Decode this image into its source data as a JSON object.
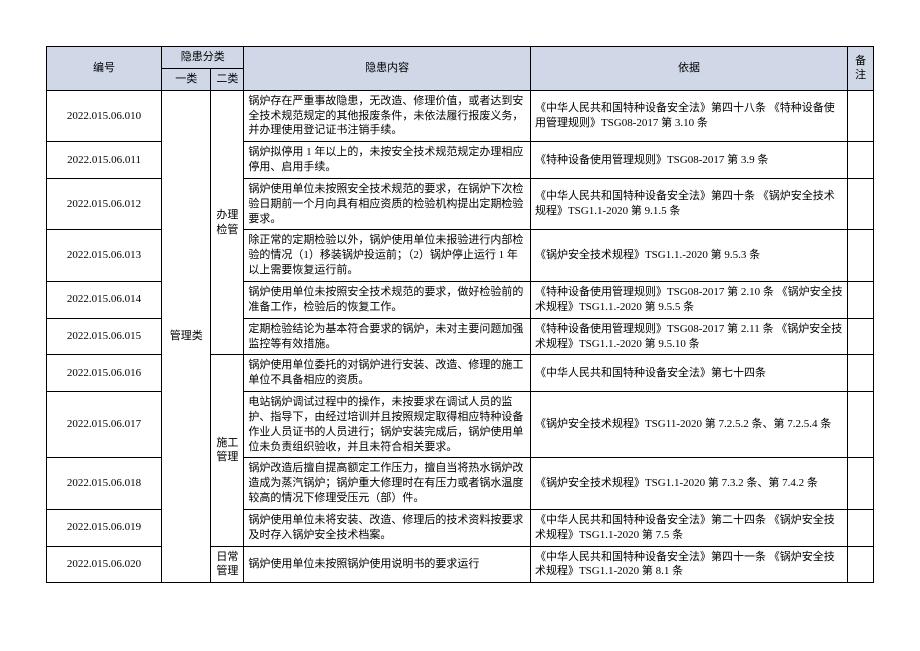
{
  "header": {
    "id": "编号",
    "category_group": "隐患分类",
    "cat1": "一类",
    "cat2": "二类",
    "content": "隐患内容",
    "basis": "依据",
    "note": "备注"
  },
  "cat1_label": "管理类",
  "cat2_labels": {
    "office": "办理检管",
    "construction": "施工管理",
    "daily": "日常管理"
  },
  "rows": [
    {
      "id": "2022.015.06.010",
      "content": "锅炉存在严重事故隐患，无改造、修理价值，或者达到安全技术规范规定的其他报废条件，未依法履行报废义务，并办理使用登记证书注销手续。",
      "basis": "《中华人民共和国特种设备安全法》第四十八条\n《特种设备使用管理规则》TSG08-2017 第 3.10 条"
    },
    {
      "id": "2022.015.06.011",
      "content": "锅炉拟停用 1 年以上的，未按安全技术规范规定办理相应停用、启用手续。",
      "basis": "《特种设备使用管理规则》TSG08-2017 第 3.9 条"
    },
    {
      "id": "2022.015.06.012",
      "content": "锅炉使用单位未按照安全技术规范的要求，在锅炉下次检验日期前一个月向具有相应资质的检验机构提出定期检验要求。",
      "basis": "《中华人民共和国特种设备安全法》第四十条\n《锅炉安全技术规程》TSG1.1-2020 第 9.1.5 条"
    },
    {
      "id": "2022.015.06.013",
      "content": "除正常的定期检验以外，锅炉使用单位未报验进行内部检验的情况（1）移装锅炉投运前；（2）锅炉停止运行 1 年以上需要恢复运行前。",
      "basis": "《锅炉安全技术规程》TSG1.1.-2020 第 9.5.3 条"
    },
    {
      "id": "2022.015.06.014",
      "content": "锅炉使用单位未按照安全技术规范的要求，做好检验前的准备工作，检验后的恢复工作。",
      "basis": "《特种设备使用管理规则》TSG08-2017 第 2.10 条\n《锅炉安全技术规程》TSG1.1.-2020 第 9.5.5 条"
    },
    {
      "id": "2022.015.06.015",
      "content": "定期检验结论为基本符合要求的锅炉，未对主要问题加强监控等有效措施。",
      "basis": "《特种设备使用管理规则》TSG08-2017 第 2.11 条\n《锅炉安全技术规程》TSG1.1.-2020 第 9.5.10 条"
    },
    {
      "id": "2022.015.06.016",
      "content": "锅炉使用单位委托的对锅炉进行安装、改造、修理的施工单位不具备相应的资质。",
      "basis": "《中华人民共和国特种设备安全法》第七十四条"
    },
    {
      "id": "2022.015.06.017",
      "content": "电站锅炉调试过程中的操作，未按要求在调试人员的监护、指导下，由经过培训并且按照规定取得相应特种设备作业人员证书的人员进行；锅炉安装完成后，锅炉使用单位未负责组织验收，并且未符合相关要求。",
      "basis": "《锅炉安全技术规程》TSG11-2020 第 7.2.5.2 条、第 7.2.5.4 条"
    },
    {
      "id": "2022.015.06.018",
      "content": "锅炉改造后擅自提高额定工作压力，擅自当将热水锅炉改造成为蒸汽锅炉；锅炉重大修理时在有压力或者锅水温度较高的情况下修理受压元（部）件。",
      "basis": "《锅炉安全技术规程》TSG1.1-2020 第 7.3.2 条、第 7.4.2 条"
    },
    {
      "id": "2022.015.06.019",
      "content": "锅炉使用单位未将安装、改造、修理后的技术资料按要求及时存入锅炉安全技术档案。",
      "basis": "《中华人民共和国特种设备安全法》第二十四条\n《锅炉安全技术规程》TSG1.1-2020 第 7.5 条"
    },
    {
      "id": "2022.015.06.020",
      "content": "锅炉使用单位未按照锅炉使用说明书的要求运行",
      "basis": "《中华人民共和国特种设备安全法》第四十一条\n《锅炉安全技术规程》TSG1.1-2020 第 8.1 条"
    }
  ]
}
